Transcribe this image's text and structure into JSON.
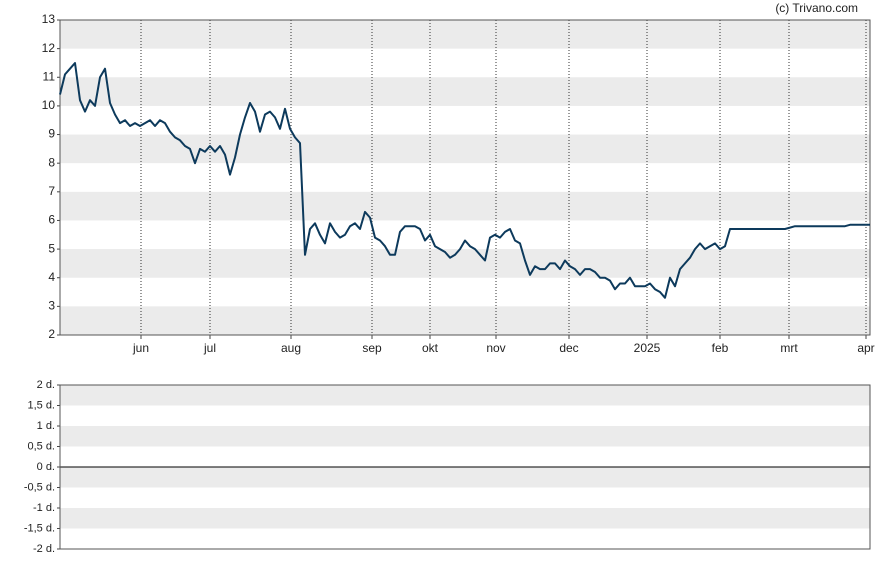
{
  "chart_data": [
    {
      "type": "line",
      "annotations": [
        "(c) Trivano.com"
      ],
      "xlim": [
        0,
        162
      ],
      "xticks": [
        {
          "value": 16.2,
          "label": "jun"
        },
        {
          "value": 30,
          "label": "jul"
        },
        {
          "value": 46.2,
          "label": "aug"
        },
        {
          "value": 62.4,
          "label": "sep"
        },
        {
          "value": 74,
          "label": "okt"
        },
        {
          "value": 87.2,
          "label": "nov"
        },
        {
          "value": 101.8,
          "label": "dec"
        },
        {
          "value": 117.4,
          "label": "2025"
        },
        {
          "value": 132,
          "label": "feb"
        },
        {
          "value": 145.8,
          "label": "mrt"
        },
        {
          "value": 161.2,
          "label": "apr"
        }
      ],
      "ylim": [
        2,
        13
      ],
      "yticks": [
        2,
        3,
        4,
        5,
        6,
        7,
        8,
        9,
        10,
        11,
        12,
        13
      ],
      "grid": true,
      "series": [
        {
          "color": "#0d3a5c",
          "values": [
            10.4,
            11.1,
            11.3,
            11.5,
            10.2,
            9.8,
            10.2,
            10.0,
            11.0,
            11.3,
            10.1,
            9.7,
            9.4,
            9.5,
            9.3,
            9.4,
            9.3,
            9.4,
            9.5,
            9.3,
            9.5,
            9.4,
            9.1,
            8.9,
            8.8,
            8.6,
            8.5,
            8.0,
            8.5,
            8.4,
            8.6,
            8.4,
            8.6,
            8.3,
            7.6,
            8.2,
            9.0,
            9.6,
            10.1,
            9.8,
            9.1,
            9.7,
            9.8,
            9.6,
            9.2,
            9.9,
            9.2,
            8.9,
            8.7,
            4.8,
            5.7,
            5.9,
            5.5,
            5.2,
            5.9,
            5.6,
            5.4,
            5.5,
            5.8,
            5.9,
            5.7,
            6.3,
            6.1,
            5.4,
            5.3,
            5.1,
            4.8,
            4.8,
            5.6,
            5.8,
            5.8,
            5.8,
            5.7,
            5.3,
            5.5,
            5.1,
            5.0,
            4.9,
            4.7,
            4.8,
            5.0,
            5.3,
            5.1,
            5.0,
            4.8,
            4.6,
            5.4,
            5.5,
            5.4,
            5.6,
            5.7,
            5.3,
            5.2,
            4.6,
            4.1,
            4.4,
            4.3,
            4.3,
            4.5,
            4.5,
            4.3,
            4.6,
            4.4,
            4.3,
            4.1,
            4.3,
            4.3,
            4.2,
            4.0,
            4.0,
            3.9,
            3.6,
            3.8,
            3.8,
            4.0,
            3.7,
            3.7,
            3.7,
            3.8,
            3.6,
            3.5,
            3.3,
            4.0,
            3.7,
            4.3,
            4.5,
            4.7,
            5.0,
            5.2,
            5.0,
            5.1,
            5.2,
            5.0,
            5.1,
            5.7,
            5.7,
            5.7,
            5.7,
            5.7,
            5.7,
            5.7,
            5.7,
            5.7,
            5.7,
            5.7,
            5.7,
            5.75,
            5.8,
            5.8,
            5.8,
            5.8,
            5.8,
            5.8,
            5.8,
            5.8,
            5.8,
            5.8,
            5.8,
            5.85,
            5.85,
            5.85,
            5.85,
            5.85
          ]
        }
      ]
    },
    {
      "type": "line",
      "ylim": [
        -2,
        2
      ],
      "grid": true,
      "yticks": [
        {
          "value": -2,
          "label": "-2 d."
        },
        {
          "value": -1.5,
          "label": "-1,5 d."
        },
        {
          "value": -1,
          "label": "-1 d."
        },
        {
          "value": -0.5,
          "label": "-0,5 d."
        },
        {
          "value": 0,
          "label": "0 d."
        },
        {
          "value": 0.5,
          "label": "0,5 d."
        },
        {
          "value": 1,
          "label": "1 d."
        },
        {
          "value": 1.5,
          "label": "1,5 d."
        },
        {
          "value": 2,
          "label": "2 d."
        }
      ]
    }
  ]
}
